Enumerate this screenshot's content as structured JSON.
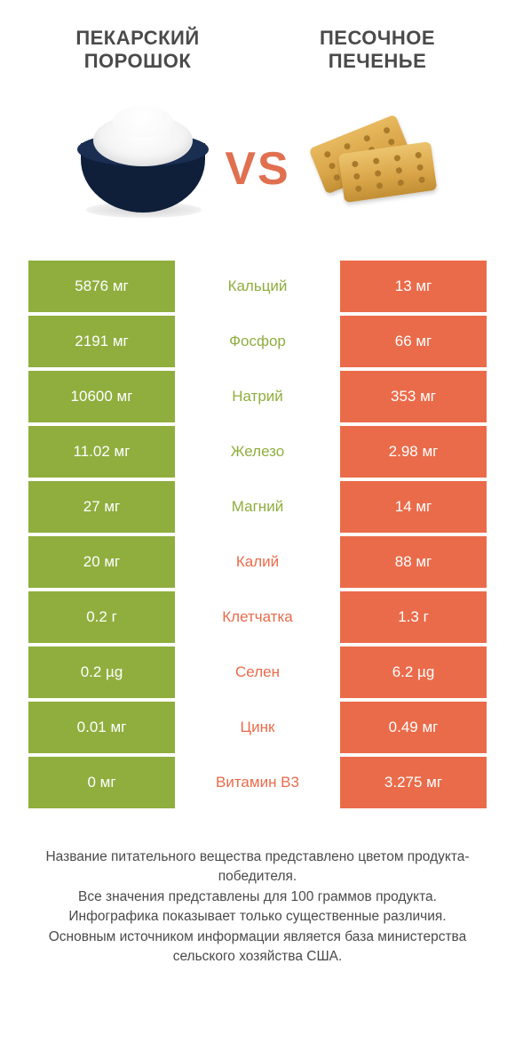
{
  "colors": {
    "green": "#8fae3e",
    "orange": "#ea6b4a",
    "label_text": "#4a4a4a",
    "vs": "#e07050"
  },
  "left_title": "ПЕКАРСКИЙ\nПОРОШОК",
  "right_title": "ПЕСОЧНОЕ\nПЕЧЕНЬЕ",
  "vs_label": "VS",
  "rows": [
    {
      "label": "Кальций",
      "left": "5876 мг",
      "right": "13 мг",
      "winner": "left"
    },
    {
      "label": "Фосфор",
      "left": "2191 мг",
      "right": "66 мг",
      "winner": "left"
    },
    {
      "label": "Натрий",
      "left": "10600 мг",
      "right": "353 мг",
      "winner": "left"
    },
    {
      "label": "Железо",
      "left": "11.02 мг",
      "right": "2.98 мг",
      "winner": "left"
    },
    {
      "label": "Магний",
      "left": "27 мг",
      "right": "14 мг",
      "winner": "left"
    },
    {
      "label": "Калий",
      "left": "20 мг",
      "right": "88 мг",
      "winner": "right"
    },
    {
      "label": "Клетчатка",
      "left": "0.2 г",
      "right": "1.3 г",
      "winner": "right"
    },
    {
      "label": "Селен",
      "left": "0.2 µg",
      "right": "6.2 µg",
      "winner": "right"
    },
    {
      "label": "Цинк",
      "left": "0.01 мг",
      "right": "0.49 мг",
      "winner": "right"
    },
    {
      "label": "Витамин B3",
      "left": "0 мг",
      "right": "3.275 мг",
      "winner": "right"
    }
  ],
  "footer_lines": [
    "Название питательного вещества представлено цветом продукта-победителя.",
    "Все значения представлены для 100 граммов продукта.",
    "Инфографика показывает только существенные различия.",
    "Основным источником информации является база министерства сельского хозяйства США."
  ]
}
